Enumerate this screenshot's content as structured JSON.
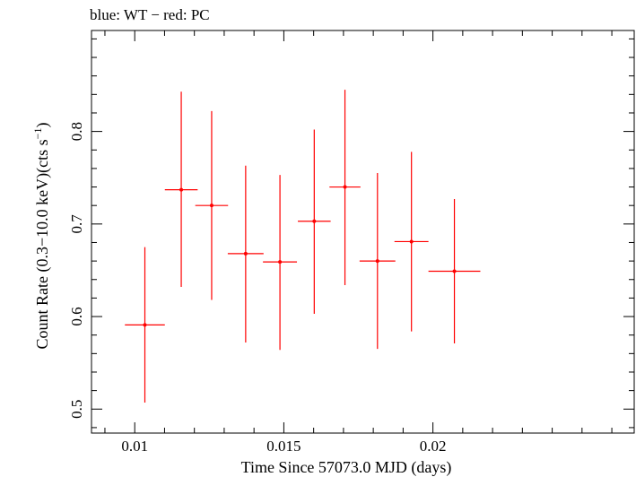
{
  "chart_data": {
    "type": "scatter",
    "title": "blue: WT − red: PC",
    "xlabel": "Time Since 57073.0 MJD (days)",
    "ylabel_main": "Count Rate (0.3−10.0 keV)(cts s",
    "ylabel_sup": "−1",
    "ylabel_close": ")",
    "xlim": [
      0.00855,
      0.02675
    ],
    "ylim": [
      0.4741,
      0.9091
    ],
    "x_ticks": [
      {
        "value": 0.01,
        "label": "0.01"
      },
      {
        "value": 0.015,
        "label": "0.015"
      },
      {
        "value": 0.02,
        "label": "0.02"
      }
    ],
    "y_ticks": [
      {
        "value": 0.5,
        "label": "0.5"
      },
      {
        "value": 0.6,
        "label": "0.6"
      },
      {
        "value": 0.7,
        "label": "0.7"
      },
      {
        "value": 0.8,
        "label": "0.8"
      }
    ],
    "x_minor_step": 0.001,
    "y_minor_step": 0.02,
    "series": [
      {
        "color": "#ff0000",
        "points": [
          {
            "x": 0.01034,
            "xerr": 0.00067,
            "y": 0.591,
            "ylo": 0.507,
            "yhi": 0.675
          },
          {
            "x": 0.01156,
            "xerr": 0.00055,
            "y": 0.737,
            "ylo": 0.632,
            "yhi": 0.843
          },
          {
            "x": 0.01258,
            "xerr": 0.00055,
            "y": 0.72,
            "ylo": 0.618,
            "yhi": 0.822
          },
          {
            "x": 0.01372,
            "xerr": 0.0006,
            "y": 0.668,
            "ylo": 0.572,
            "yhi": 0.763
          },
          {
            "x": 0.01487,
            "xerr": 0.00057,
            "y": 0.659,
            "ylo": 0.564,
            "yhi": 0.753
          },
          {
            "x": 0.01602,
            "xerr": 0.00055,
            "y": 0.703,
            "ylo": 0.603,
            "yhi": 0.802
          },
          {
            "x": 0.01705,
            "xerr": 0.00052,
            "y": 0.74,
            "ylo": 0.634,
            "yhi": 0.845
          },
          {
            "x": 0.01814,
            "xerr": 0.0006,
            "y": 0.66,
            "ylo": 0.565,
            "yhi": 0.755
          },
          {
            "x": 0.01928,
            "xerr": 0.00057,
            "y": 0.681,
            "ylo": 0.584,
            "yhi": 0.778
          },
          {
            "x": 0.02072,
            "xerr": 0.00087,
            "y": 0.649,
            "ylo": 0.571,
            "yhi": 0.727
          }
        ]
      }
    ]
  }
}
